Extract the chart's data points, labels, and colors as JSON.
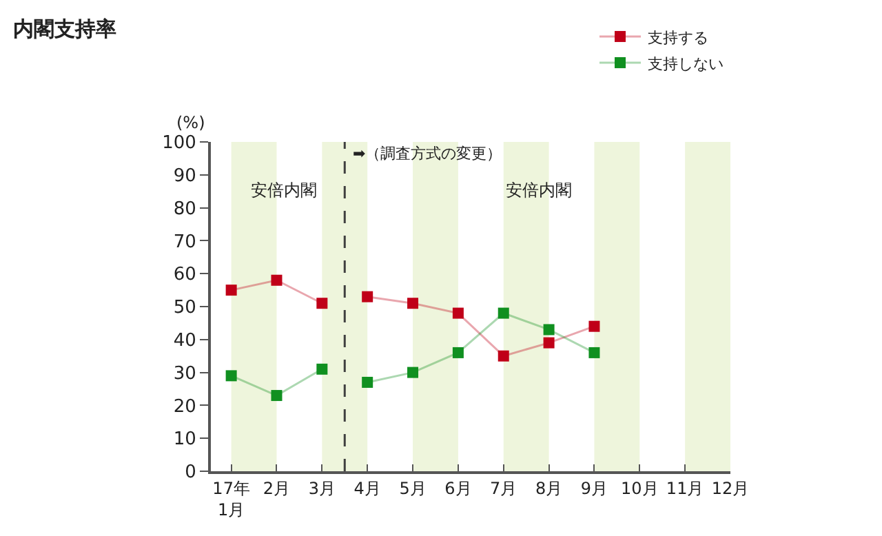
{
  "chart_data": {
    "type": "line",
    "title": "内閣支持率",
    "ylabel": "(%)",
    "x": [
      1,
      2,
      3,
      4,
      5,
      6,
      7,
      8,
      9
    ],
    "series": [
      {
        "name": "支持する",
        "color": "#c00018",
        "values": [
          55,
          58,
          51,
          null,
          null,
          null,
          null,
          null,
          null
        ]
      },
      {
        "name": "支持しない",
        "color": "#109020",
        "values": [
          29,
          23,
          31,
          null,
          null,
          null,
          null,
          null,
          null
        ]
      },
      {
        "color": "#c00018",
        "values": [
          null,
          null,
          null,
          53,
          51,
          48,
          35,
          39,
          44
        ]
      },
      {
        "color": "#109020",
        "values": [
          null,
          null,
          null,
          27,
          30,
          36,
          48,
          43,
          36
        ]
      }
    ],
    "xlim": [
      0.55,
      12
    ],
    "xticks": [
      {
        "value": 1,
        "label": "17年\n1月"
      },
      {
        "value": 2,
        "label": "2月"
      },
      {
        "value": 3,
        "label": "3月"
      },
      {
        "value": 4,
        "label": "4月"
      },
      {
        "value": 5,
        "label": "5月"
      },
      {
        "value": 6,
        "label": "6月"
      },
      {
        "value": 7,
        "label": "7月"
      },
      {
        "value": 8,
        "label": "8月"
      },
      {
        "value": 9,
        "label": "9月"
      },
      {
        "value": 10,
        "label": "10月"
      },
      {
        "value": 11,
        "label": "11月"
      },
      {
        "value": 12,
        "label": "12月"
      }
    ],
    "ylim": [
      0,
      100
    ],
    "yticks": [
      0,
      10,
      20,
      30,
      40,
      50,
      60,
      70,
      80,
      90,
      100
    ],
    "bands": [
      {
        "axis": "x",
        "from": 1,
        "to": 2,
        "color": "#eef5dc"
      },
      {
        "axis": "x",
        "from": 3,
        "to": 4,
        "color": "#eef5dc"
      },
      {
        "axis": "x",
        "from": 5,
        "to": 6,
        "color": "#eef5dc"
      },
      {
        "axis": "x",
        "from": 7,
        "to": 8,
        "color": "#eef5dc"
      },
      {
        "axis": "x",
        "from": 9,
        "to": 10,
        "color": "#eef5dc"
      },
      {
        "axis": "x",
        "from": 11,
        "to": 12,
        "color": "#eef5dc"
      }
    ],
    "ref_lines": [
      {
        "axis": "x",
        "value": 3.5,
        "label": "➡（調査方式の変更）",
        "color": "#404040",
        "line_style": "dashed"
      }
    ],
    "annotations": [
      "安倍内閣",
      "安倍内閣"
    ],
    "grid": false,
    "legend": "top right",
    "marker": "square",
    "line_style": "solid"
  }
}
